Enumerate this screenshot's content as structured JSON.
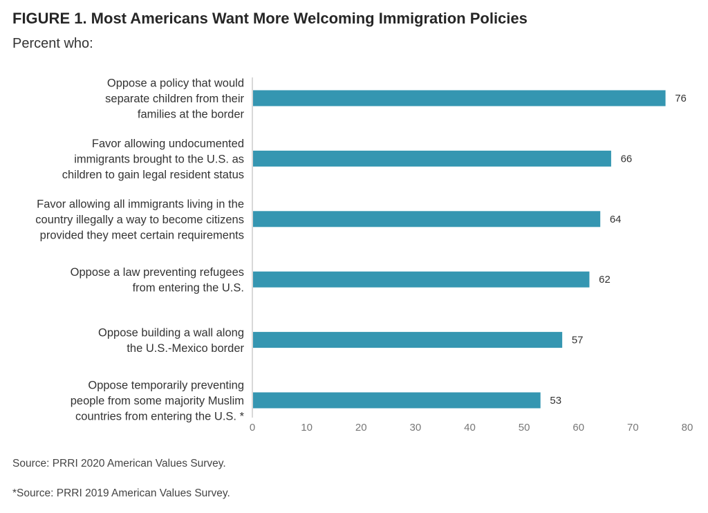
{
  "title": "FIGURE 1. Most Americans Want More Welcoming Immigration Policies",
  "subtitle": "Percent who:",
  "chart_data": {
    "type": "bar",
    "orientation": "horizontal",
    "categories": [
      [
        "Oppose a policy that would",
        "separate children from their",
        "families at the border"
      ],
      [
        "Favor allowing undocumented",
        "immigrants brought to the U.S. as",
        "children to gain legal resident status"
      ],
      [
        "Favor allowing all immigrants living in the",
        "country illegally a way to become citizens",
        "provided they meet certain requirements"
      ],
      [
        "Oppose a law preventing refugees",
        "from entering the U.S."
      ],
      [
        "Oppose building a wall along",
        "the U.S.-Mexico border"
      ],
      [
        "Oppose temporarily preventing",
        "people from some majority Muslim",
        "countries from entering the U.S. *"
      ]
    ],
    "values": [
      76,
      66,
      64,
      62,
      57,
      53
    ],
    "xlim": [
      0,
      80
    ],
    "xticks": [
      0,
      10,
      20,
      30,
      40,
      50,
      60,
      70,
      80
    ],
    "grid": false,
    "bar_color": "#3596b1"
  },
  "notes": [
    "Source: PRRI 2020 American Values Survey.",
    "*Source: PRRI 2019 American Values Survey."
  ]
}
